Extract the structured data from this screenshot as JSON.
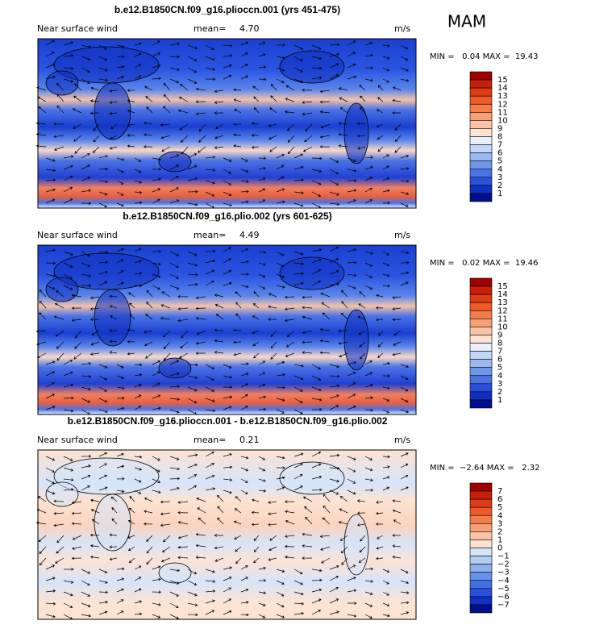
{
  "header": {
    "season": "MAM"
  },
  "panels": [
    {
      "title": "b.e12.B1850CN.f09_g16.plioccn.001 (yrs 451-475)",
      "label": "Near surface wind",
      "mean_label": "mean=",
      "mean": "4.70",
      "units": "m/s",
      "range_text": "MIN =   0.04 MAX =  19.43",
      "colorbar_labels": [
        "15",
        "14",
        "13",
        "12",
        "11",
        "10",
        "9",
        "8",
        "7",
        "6",
        "5",
        "4",
        "3",
        "2",
        "1"
      ],
      "colorbar_colors": [
        "#a00000",
        "#c81e0a",
        "#e03c14",
        "#f05a28",
        "#f57d4b",
        "#f89f78",
        "#fbc3a5",
        "#fde3d2",
        "#e8f0fc",
        "#c3d7f8",
        "#9bbaf2",
        "#7096ec",
        "#4a73e6",
        "#2a50dc",
        "#1030c0",
        "#00108c"
      ],
      "style": "speed"
    },
    {
      "title": "b.e12.B1850CN.f09_g16.plio.002 (yrs 601-625)",
      "label": "Near surface wind",
      "mean_label": "mean=",
      "mean": "4.49",
      "units": "m/s",
      "range_text": "MIN =   0.02 MAX =  19.46",
      "colorbar_labels": [
        "15",
        "14",
        "13",
        "12",
        "11",
        "10",
        "9",
        "8",
        "7",
        "6",
        "5",
        "4",
        "3",
        "2",
        "1"
      ],
      "colorbar_colors": [
        "#a00000",
        "#c81e0a",
        "#e03c14",
        "#f05a28",
        "#f57d4b",
        "#f89f78",
        "#fbc3a5",
        "#fde3d2",
        "#e8f0fc",
        "#c3d7f8",
        "#9bbaf2",
        "#7096ec",
        "#4a73e6",
        "#2a50dc",
        "#1030c0",
        "#00108c"
      ],
      "style": "speed"
    },
    {
      "title": "b.e12.B1850CN.f09_g16.plioccn.001 - b.e12.B1850CN.f09_g16.plio.002",
      "label": "Near surface wind",
      "mean_label": "mean=",
      "mean": "0.21",
      "units": "m/s",
      "range_text": "MIN =  −2.64 MAX =   2.32",
      "colorbar_labels": [
        "7",
        "6",
        "5",
        "4",
        "3",
        "2",
        "1",
        "0",
        "−1",
        "−2",
        "−3",
        "−4",
        "−5",
        "−6",
        "−7"
      ],
      "colorbar_colors": [
        "#a00000",
        "#c81e0a",
        "#e03c14",
        "#f05a28",
        "#f57d4b",
        "#f89f78",
        "#fbc3a5",
        "#fde3d2",
        "#d6e4fa",
        "#b4cdf5",
        "#8eb0ef",
        "#6890ea",
        "#4270e4",
        "#2a50dc",
        "#1030c0",
        "#00108c"
      ],
      "style": "diff"
    }
  ]
}
